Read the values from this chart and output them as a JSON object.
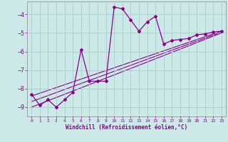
{
  "xlabel": "Windchill (Refroidissement éolien,°C)",
  "bg_color": "#cce8e8",
  "line_color": "#880088",
  "grid_color": "#aacccc",
  "xlim": [
    -0.5,
    23.5
  ],
  "ylim": [
    -9.5,
    -3.3
  ],
  "yticks": [
    -9,
    -8,
    -7,
    -6,
    -5,
    -4
  ],
  "xticks": [
    0,
    1,
    2,
    3,
    4,
    5,
    6,
    7,
    8,
    9,
    10,
    11,
    12,
    13,
    14,
    15,
    16,
    17,
    18,
    19,
    20,
    21,
    22,
    23
  ],
  "series1_x": [
    0,
    1,
    2,
    3,
    4,
    5,
    6,
    7,
    8,
    9,
    10,
    11,
    12,
    13,
    14,
    15,
    16,
    17,
    18,
    19,
    20,
    21,
    22,
    23
  ],
  "series1_y": [
    -8.3,
    -8.9,
    -8.6,
    -9.0,
    -8.6,
    -8.2,
    -5.9,
    -7.6,
    -7.6,
    -7.6,
    -3.6,
    -3.7,
    -4.3,
    -4.9,
    -4.4,
    -4.1,
    -5.6,
    -5.4,
    -5.35,
    -5.3,
    -5.1,
    -5.05,
    -4.95,
    -4.9
  ],
  "line2_x0": 0,
  "line2_y0": -9.0,
  "line2_x1": 23,
  "line2_y1": -5.0,
  "line3_x0": 0,
  "line3_y0": -8.7,
  "line3_x1": 23,
  "line3_y1": -4.95,
  "line4_x0": 0,
  "line4_y0": -8.4,
  "line4_x1": 23,
  "line4_y1": -4.9
}
